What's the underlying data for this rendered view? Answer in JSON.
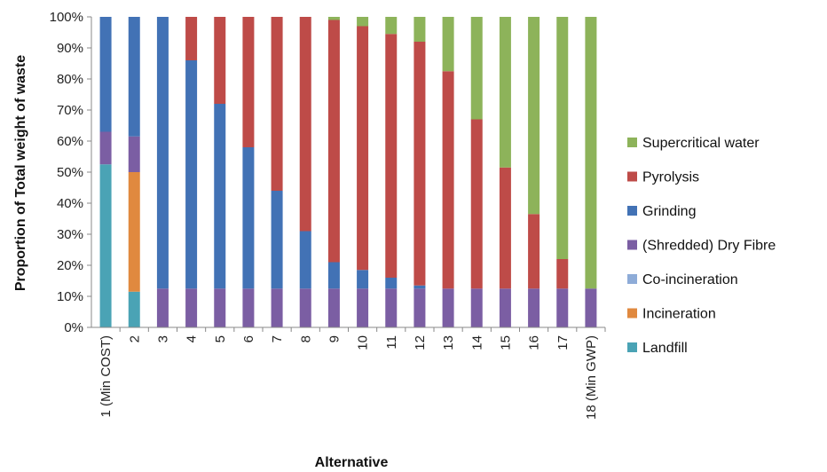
{
  "chart_data": {
    "type": "bar",
    "stacked": true,
    "percent_stacked": true,
    "title": "",
    "xlabel": "Alternative",
    "ylabel": "Proportion of Total weight of waste",
    "ylim": [
      0,
      100
    ],
    "y_ticks": [
      "0%",
      "10%",
      "20%",
      "30%",
      "40%",
      "50%",
      "60%",
      "70%",
      "80%",
      "90%",
      "100%"
    ],
    "categories": [
      "1 (Min COST)",
      "2",
      "3",
      "4",
      "5",
      "6",
      "7",
      "8",
      "9",
      "10",
      "11",
      "12",
      "13",
      "14",
      "15",
      "16",
      "17",
      "18 (Min GWP)"
    ],
    "legend_position": "right",
    "series": [
      {
        "name": "Landfill",
        "color": "#4aa3b5",
        "values": [
          52.5,
          11.5,
          0,
          0,
          0,
          0,
          0,
          0,
          0,
          0,
          0,
          0,
          0,
          0,
          0,
          0,
          0,
          0
        ]
      },
      {
        "name": "Incineration",
        "color": "#e0893f",
        "values": [
          0,
          38.5,
          0,
          0,
          0,
          0,
          0,
          0,
          0,
          0,
          0,
          0,
          0,
          0,
          0,
          0,
          0,
          0
        ]
      },
      {
        "name": "Co-incineration",
        "color": "#8eacd8",
        "values": [
          0,
          0,
          0,
          0,
          0,
          0,
          0,
          0,
          0,
          0,
          0,
          0,
          0,
          0,
          0,
          0,
          0,
          0
        ]
      },
      {
        "name": "(Shredded) Dry Fibre",
        "color": "#7b5ea3",
        "values": [
          10.5,
          11.5,
          12.5,
          12.5,
          12.5,
          12.5,
          12.5,
          12.5,
          12.5,
          12.5,
          12.5,
          12.5,
          12.5,
          12.5,
          12.5,
          12.5,
          12.5,
          12.5
        ]
      },
      {
        "name": "Grinding",
        "color": "#4272b5",
        "values": [
          37,
          38.5,
          87.5,
          73.5,
          59.5,
          45.5,
          31.5,
          18.5,
          8.5,
          6,
          3.5,
          1,
          0,
          0,
          0,
          0,
          0,
          0
        ]
      },
      {
        "name": "Pyrolysis",
        "color": "#be4b48",
        "values": [
          0,
          0,
          0,
          14,
          28,
          42,
          56,
          69,
          78,
          78.5,
          78.5,
          78.5,
          70,
          54.5,
          39,
          24,
          9.5,
          0
        ]
      },
      {
        "name": "Supercritical water",
        "color": "#8db35a",
        "values": [
          0,
          0,
          0,
          0,
          0,
          0,
          0,
          0,
          1,
          3,
          5.5,
          8,
          17.5,
          33,
          48.5,
          63.5,
          78,
          87.5
        ]
      }
    ]
  }
}
